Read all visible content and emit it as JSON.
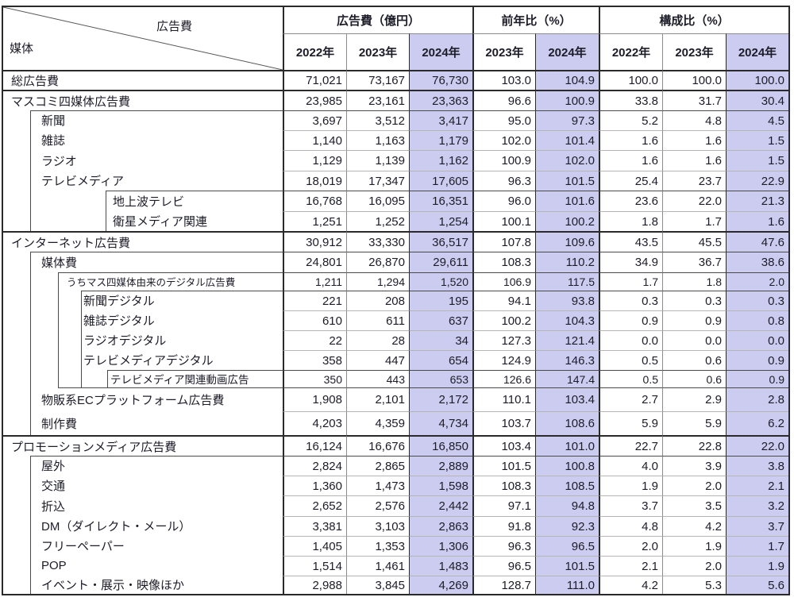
{
  "table": {
    "corner": {
      "diagonal_top_right": "広告費",
      "diagonal_bottom_left": "媒体"
    },
    "col_groups": [
      {
        "label": "広告費（億円）",
        "years": [
          "2022年",
          "2023年",
          "2024年"
        ]
      },
      {
        "label": "前年比（%）",
        "years": [
          "2023年",
          "2024年"
        ]
      },
      {
        "label": "構成比（%）",
        "years": [
          "2022年",
          "2023年",
          "2024年"
        ]
      }
    ],
    "highlighted_year": "2024年",
    "highlight_color": "#ccccf0"
  },
  "chart_data": {
    "type": "table",
    "columns": [
      "媒体",
      "広告費 2022年（億円）",
      "広告費 2023年（億円）",
      "広告費 2024年（億円）",
      "前年比 2023年（%）",
      "前年比 2024年（%）",
      "構成比 2022年（%）",
      "構成比 2023年（%）",
      "構成比 2024年（%）"
    ],
    "rows": [
      {
        "label": "総広告費",
        "ind": "0",
        "values": [
          "71,021",
          "73,167",
          "76,730",
          "103.0",
          "104.9",
          "100.0",
          "100.0",
          "100.0"
        ]
      },
      {
        "label": "マスコミ四媒体広告費",
        "ind": "0",
        "values": [
          "23,985",
          "23,161",
          "23,363",
          "96.6",
          "100.9",
          "33.8",
          "31.7",
          "30.4"
        ]
      },
      {
        "label": "新聞",
        "ind": "1",
        "values": [
          "3,697",
          "3,512",
          "3,417",
          "95.0",
          "97.3",
          "5.2",
          "4.8",
          "4.5"
        ]
      },
      {
        "label": "雑誌",
        "ind": "1",
        "values": [
          "1,140",
          "1,163",
          "1,179",
          "102.0",
          "101.4",
          "1.6",
          "1.6",
          "1.5"
        ]
      },
      {
        "label": "ラジオ",
        "ind": "1",
        "values": [
          "1,129",
          "1,139",
          "1,162",
          "100.9",
          "102.0",
          "1.6",
          "1.6",
          "1.5"
        ]
      },
      {
        "label": "テレビメディア",
        "ind": "1",
        "values": [
          "18,019",
          "17,347",
          "17,605",
          "96.3",
          "101.5",
          "25.4",
          "23.7",
          "22.9"
        ]
      },
      {
        "label": "地上波テレビ",
        "ind": "2tv",
        "values": [
          "16,768",
          "16,095",
          "16,351",
          "96.0",
          "101.6",
          "23.6",
          "22.0",
          "21.3"
        ]
      },
      {
        "label": "衛星メディア関連",
        "ind": "2tv",
        "values": [
          "1,251",
          "1,252",
          "1,254",
          "100.1",
          "100.2",
          "1.8",
          "1.7",
          "1.6"
        ]
      },
      {
        "label": "インターネット広告費",
        "ind": "0",
        "values": [
          "30,912",
          "33,330",
          "36,517",
          "107.8",
          "109.6",
          "43.5",
          "45.5",
          "47.6"
        ]
      },
      {
        "label": "媒体費",
        "ind": "1",
        "values": [
          "24,801",
          "26,870",
          "29,611",
          "108.3",
          "110.2",
          "34.9",
          "36.7",
          "38.6"
        ]
      },
      {
        "label": "うちマス四媒体由来のデジタル広告費",
        "ind": "2note",
        "values": [
          "1,211",
          "1,294",
          "1,520",
          "106.9",
          "117.5",
          "1.7",
          "1.8",
          "2.0"
        ]
      },
      {
        "label": "新聞デジタル",
        "ind": "3",
        "values": [
          "221",
          "208",
          "195",
          "94.1",
          "93.8",
          "0.3",
          "0.3",
          "0.3"
        ]
      },
      {
        "label": "雑誌デジタル",
        "ind": "3",
        "values": [
          "610",
          "611",
          "637",
          "100.2",
          "104.3",
          "0.9",
          "0.9",
          "0.8"
        ]
      },
      {
        "label": "ラジオデジタル",
        "ind": "3",
        "values": [
          "22",
          "28",
          "34",
          "127.3",
          "121.4",
          "0.0",
          "0.0",
          "0.0"
        ]
      },
      {
        "label": "テレビメディアデジタル",
        "ind": "3",
        "values": [
          "358",
          "447",
          "654",
          "124.9",
          "146.3",
          "0.5",
          "0.6",
          "0.9"
        ]
      },
      {
        "label": "テレビメディア関連動画広告",
        "ind": "4",
        "values": [
          "350",
          "443",
          "653",
          "126.6",
          "147.4",
          "0.5",
          "0.6",
          "0.9"
        ]
      },
      {
        "label": "物販系ECプラットフォーム広告費",
        "ind": "1",
        "values": [
          "1,908",
          "2,101",
          "2,172",
          "110.1",
          "103.4",
          "2.7",
          "2.9",
          "2.8"
        ]
      },
      {
        "label": "制作費",
        "ind": "1",
        "values": [
          "4,203",
          "4,359",
          "4,734",
          "103.7",
          "108.6",
          "5.9",
          "5.9",
          "6.2"
        ]
      },
      {
        "label": "プロモーションメディア広告費",
        "ind": "0",
        "values": [
          "16,124",
          "16,676",
          "16,850",
          "103.4",
          "101.0",
          "22.7",
          "22.8",
          "22.0"
        ]
      },
      {
        "label": "屋外",
        "ind": "1",
        "values": [
          "2,824",
          "2,865",
          "2,889",
          "101.5",
          "100.8",
          "4.0",
          "3.9",
          "3.8"
        ]
      },
      {
        "label": "交通",
        "ind": "1",
        "values": [
          "1,360",
          "1,473",
          "1,598",
          "108.3",
          "108.5",
          "1.9",
          "2.0",
          "2.1"
        ]
      },
      {
        "label": "折込",
        "ind": "1",
        "values": [
          "2,652",
          "2,576",
          "2,442",
          "97.1",
          "94.8",
          "3.7",
          "3.5",
          "3.2"
        ]
      },
      {
        "label": "DM（ダイレクト・メール）",
        "ind": "1",
        "values": [
          "3,381",
          "3,103",
          "2,863",
          "91.8",
          "92.3",
          "4.8",
          "4.2",
          "3.7"
        ]
      },
      {
        "label": "フリーペーパー",
        "ind": "1",
        "values": [
          "1,405",
          "1,353",
          "1,306",
          "96.3",
          "96.5",
          "2.0",
          "1.9",
          "1.7"
        ]
      },
      {
        "label": "POP",
        "ind": "1",
        "values": [
          "1,514",
          "1,461",
          "1,483",
          "96.5",
          "101.5",
          "2.1",
          "2.0",
          "1.9"
        ]
      },
      {
        "label": "イベント・展示・映像ほか",
        "ind": "1",
        "values": [
          "2,988",
          "3,845",
          "4,269",
          "128.7",
          "111.0",
          "4.2",
          "5.3",
          "5.6"
        ]
      }
    ]
  }
}
